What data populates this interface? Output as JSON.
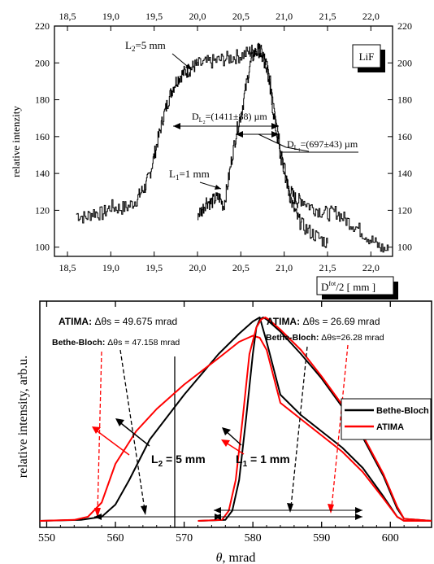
{
  "chart_data": [
    {
      "type": "line",
      "ylabel": "relative intenzity",
      "xlabel": "D",
      "xlabel_sup": "fot",
      "xlabel_tail": "/2 [ mm ]",
      "xlim": [
        18.35,
        22.25
      ],
      "ylim": [
        95,
        220
      ],
      "x_ticks": [
        "18,5",
        "19,0",
        "19,5",
        "20,0",
        "20,5",
        "21,0",
        "21,5",
        "22,0"
      ],
      "x_tick_values": [
        18.5,
        19.0,
        19.5,
        20.0,
        20.5,
        21.0,
        21.5,
        22.0
      ],
      "y_ticks": [
        "100",
        "120",
        "140",
        "160",
        "180",
        "200",
        "220"
      ],
      "y_tick_values": [
        100,
        120,
        140,
        160,
        180,
        200,
        220
      ],
      "legend_box": "LiF",
      "annotations": {
        "L2_prefix": "L",
        "L2_sub": "2",
        "L2_suffix": "=5 mm",
        "L1_prefix": "L",
        "L1_sub": "1",
        "L1_suffix": "=1 mm",
        "DL2_prefix": "D",
        "DL2_sub": "L",
        "DL2_subsub": "2",
        "DL2_suffix": "=(1411±88) µm",
        "DL1_prefix": "D",
        "DL1_sub": "L",
        "DL1_subsub": "1",
        "DL1_suffix": "=(697±43) µm"
      },
      "series": [
        {
          "name": "L2=5 mm",
          "x": [
            18.6,
            18.7,
            18.8,
            18.9,
            19.0,
            19.1,
            19.2,
            19.3,
            19.35,
            19.4,
            19.45,
            19.5,
            19.55,
            19.6,
            19.65,
            19.7,
            19.75,
            19.8,
            19.85,
            19.9,
            19.95,
            20.0,
            20.1,
            20.2,
            20.3,
            20.4,
            20.5,
            20.6,
            20.65,
            20.7,
            20.75,
            20.8,
            20.85,
            20.9,
            20.95,
            21.0,
            21.05,
            21.1,
            21.15,
            21.2,
            21.3,
            21.4,
            21.5,
            21.6,
            21.7,
            21.8,
            21.9,
            22.0,
            22.1,
            22.2
          ],
          "y": [
            118,
            116,
            119,
            118,
            122,
            121,
            122,
            126,
            130,
            133,
            140,
            150,
            160,
            170,
            178,
            185,
            190,
            193,
            195,
            196,
            198,
            199,
            200,
            201,
            202,
            203,
            204,
            206,
            207,
            208,
            204,
            196,
            180,
            165,
            150,
            140,
            132,
            128,
            125,
            126,
            122,
            120,
            118,
            119,
            115,
            112,
            108,
            104,
            100,
            98
          ]
        },
        {
          "name": "L1=1 mm",
          "x": [
            20.0,
            20.05,
            20.1,
            20.15,
            20.2,
            20.25,
            20.3,
            20.35,
            20.4,
            20.45,
            20.5,
            20.55,
            20.6,
            20.65,
            20.7,
            20.75,
            20.8,
            20.85,
            20.9,
            20.95,
            21.0,
            21.05,
            21.1,
            21.15,
            21.2,
            21.3,
            21.4,
            21.5
          ],
          "y": [
            118,
            120,
            125,
            124,
            126,
            127,
            122,
            135,
            150,
            163,
            172,
            185,
            198,
            205,
            207,
            205,
            198,
            186,
            172,
            156,
            143,
            130,
            122,
            116,
            112,
            108,
            105,
            102
          ]
        }
      ]
    },
    {
      "type": "line",
      "ylabel": "relative intensity, arb.u.",
      "xlabel_theta": "θ",
      "xlabel_unit": ",  mrad",
      "xlim": [
        549,
        606
      ],
      "x_ticks": [
        "550",
        "560",
        "570",
        "580",
        "590",
        "600"
      ],
      "x_tick_values": [
        550,
        560,
        570,
        580,
        590,
        600
      ],
      "legend": [
        "Bethe-Bloch",
        "ATIMA"
      ],
      "colors": {
        "Bethe-Bloch": "#000000",
        "ATIMA": "#ff0000"
      },
      "annotations": {
        "atima_left_prefix": "ATIMA: ",
        "atima_left_value": "Δθs = 49.675 mrad",
        "bb_left_prefix": "Bethe-Bloch: ",
        "bb_left_value": "Δθs = 47.158 mrad",
        "atima_right_prefix": "ATIMA: ",
        "atima_right_value": "Δθs = 26.69 mrad",
        "bb_right_prefix": "Bethe-Bloch: ",
        "bb_right_value": "Δθs=26.28 mrad",
        "L2_prefix": "L",
        "L2_sub": "2",
        "L2_suffix": " = 5 mm",
        "L1_prefix": "L",
        "L1_sub": "1",
        "L1_suffix": " = 1 mm"
      },
      "series": [
        {
          "name": "Bethe-Bloch (L2)",
          "x": [
            549,
            555,
            558,
            560,
            562,
            565,
            570,
            575,
            578,
            580,
            581,
            582,
            584,
            587,
            590,
            593,
            596,
            599,
            601,
            602,
            606
          ],
          "y": [
            0,
            0.5,
            2,
            8,
            20,
            40,
            62,
            82,
            92,
            98,
            100,
            88,
            62,
            52,
            44,
            36,
            26,
            12,
            2,
            0,
            0
          ]
        },
        {
          "name": "ATIMA (L2)",
          "x": [
            549,
            554,
            556,
            558,
            560,
            563,
            566,
            570,
            575,
            578,
            580,
            581,
            582,
            584,
            587,
            590,
            593,
            596,
            599,
            601,
            602,
            606
          ],
          "y": [
            0,
            0.5,
            2,
            9,
            28,
            44,
            55,
            67,
            80,
            88,
            91,
            90,
            84,
            58,
            50,
            42,
            34,
            24,
            11,
            2,
            0,
            0
          ]
        },
        {
          "name": "Bethe-Bloch (L1)",
          "x": [
            572,
            576,
            577,
            578,
            579,
            580,
            580.5,
            581,
            581.5,
            582,
            584,
            587,
            590,
            593,
            596,
            599,
            601,
            602,
            606
          ],
          "y": [
            0,
            0.5,
            5,
            20,
            50,
            82,
            95,
            99,
            100,
            99,
            93,
            82,
            70,
            56,
            41,
            22,
            6,
            1,
            0
          ]
        },
        {
          "name": "ATIMA (L1)",
          "x": [
            572,
            575.5,
            576.5,
            577.5,
            578.5,
            579.5,
            580.5,
            581.2,
            581.8,
            582.3,
            584,
            587,
            590,
            593,
            596,
            599,
            601,
            602,
            606
          ],
          "y": [
            0,
            0.5,
            5,
            20,
            50,
            82,
            95,
            99,
            100,
            99,
            94,
            84,
            71,
            57,
            42,
            23,
            7,
            1,
            0
          ]
        }
      ]
    }
  ]
}
